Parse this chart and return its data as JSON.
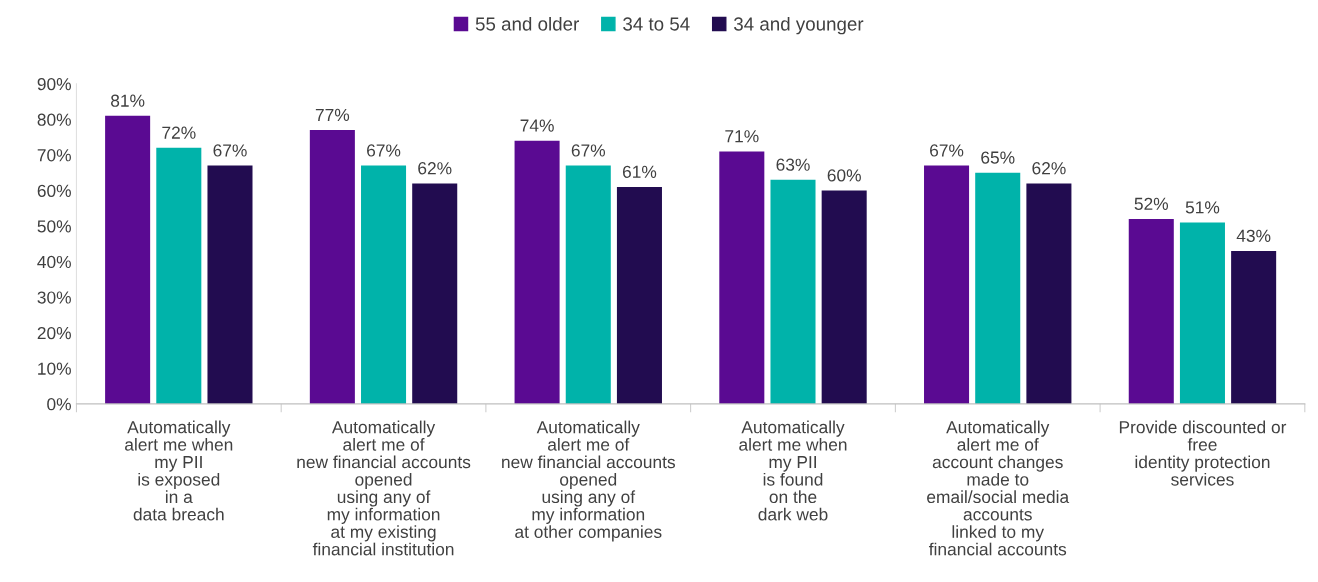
{
  "chart_data": {
    "type": "bar",
    "categories": [
      "Automatically\nalert me when\nmy PII\nis exposed\nin a\ndata breach",
      "Automatically\nalert me of\nnew financial accounts\nopened\nusing any of\nmy information\nat my existing\nfinancial institution",
      "Automatically\nalert me of\nnew financial accounts\nopened\nusing any of\nmy information\nat other companies",
      "Automatically\nalert me when\nmy PII\nis found\non the\ndark web",
      "Automatically\nalert me of\naccount changes\nmade to\nemail/social media\naccounts\nlinked to my\nfinancial accounts",
      "Provide discounted or\nfree\nidentity protection\nservices"
    ],
    "series": [
      {
        "name": "55 and older",
        "color": "#5a0a92",
        "values": [
          81,
          77,
          74,
          71,
          67,
          52
        ],
        "value_labels": [
          "81%",
          "77%",
          "74%",
          "71%",
          "67%",
          "52%"
        ]
      },
      {
        "name": "34 to 54",
        "color": "#00b3aa",
        "values": [
          72,
          67,
          67,
          63,
          65,
          51
        ],
        "value_labels": [
          "72%",
          "67%",
          "67%",
          "63%",
          "65%",
          "51%"
        ]
      },
      {
        "name": "34 and younger",
        "color": "#220c50",
        "values": [
          67,
          62,
          61,
          60,
          62,
          43
        ],
        "value_labels": [
          "67%",
          "62%",
          "61%",
          "60%",
          "62%",
          "43%"
        ]
      }
    ],
    "ylim": [
      0,
      90
    ],
    "yticks": [
      {
        "value": 0,
        "label": "0%"
      },
      {
        "value": 10,
        "label": "10%"
      },
      {
        "value": 20,
        "label": "20%"
      },
      {
        "value": 30,
        "label": "30%"
      },
      {
        "value": 40,
        "label": "40%"
      },
      {
        "value": 50,
        "label": "50%"
      },
      {
        "value": 60,
        "label": "60%"
      },
      {
        "value": 70,
        "label": "70%"
      },
      {
        "value": 80,
        "label": "80%"
      },
      {
        "value": 90,
        "label": "90%"
      }
    ],
    "grid": false,
    "legend": "top"
  }
}
